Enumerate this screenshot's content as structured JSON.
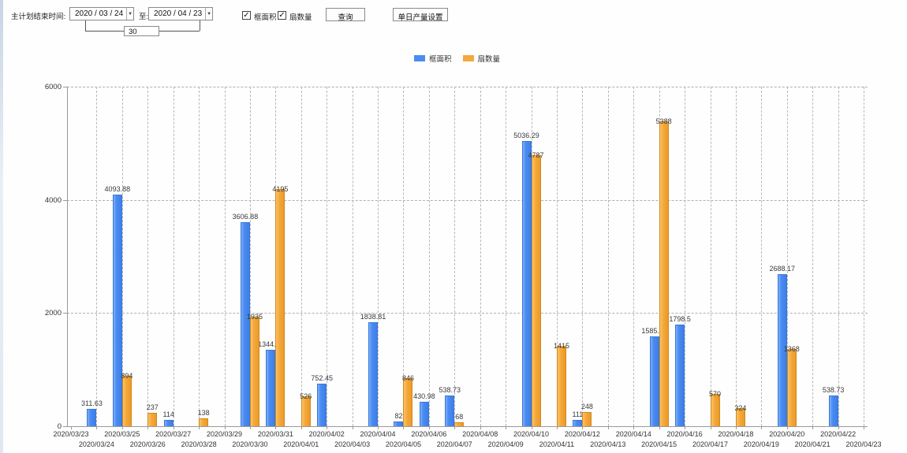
{
  "toolbar": {
    "range_label": "主计划结束时间:",
    "from_date": "2020 / 03 / 24",
    "to_label": "至:",
    "to_date": "2020 / 04 / 23",
    "span_days": "30",
    "checkbox_area_label": "框面积",
    "checkbox_area_checked": "✓",
    "checkbox_fan_label": "扇数量",
    "checkbox_fan_checked": "✓",
    "query_button_label": "查询",
    "daily_output_button_label": "单日产量设置"
  },
  "legend": {
    "items": [
      {
        "label": "框面积",
        "color": "#4a8cf2"
      },
      {
        "label": "扇数量",
        "color": "#f5a83c"
      }
    ]
  },
  "colors": {
    "blue_series": "#4a8cf2",
    "orange_series": "#f5a83c",
    "grid": "#b8b8b8",
    "axis": "#9a9a9a"
  },
  "chart_data": {
    "type": "bar",
    "title": "",
    "xlabel": "",
    "ylabel": "",
    "ylim": [
      0,
      6000
    ],
    "y_ticks": [
      0,
      2000,
      4000,
      6000
    ],
    "grid": true,
    "legend_position": "top-center",
    "categories": [
      "2020/03/23",
      "2020/03/24",
      "2020/03/25",
      "2020/03/26",
      "2020/03/27",
      "2020/03/28",
      "2020/03/29",
      "2020/03/30",
      "2020/03/31",
      "2020/04/01",
      "2020/04/02",
      "2020/04/03",
      "2020/04/04",
      "2020/04/05",
      "2020/04/06",
      "2020/04/07",
      "2020/04/08",
      "2020/04/09",
      "2020/04/10",
      "2020/04/11",
      "2020/04/12",
      "2020/04/13",
      "2020/04/14",
      "2020/04/15",
      "2020/04/16",
      "2020/04/17",
      "2020/04/18",
      "2020/04/19",
      "2020/04/20",
      "2020/04/21",
      "2020/04/22",
      "2020/04/23"
    ],
    "series": [
      {
        "name": "框面积",
        "color": "#4a8cf2",
        "values": [
          null,
          311.63,
          4093.88,
          null,
          114,
          null,
          null,
          3606.88,
          1344.95,
          null,
          752.45,
          null,
          1838.81,
          82,
          430.98,
          538.73,
          null,
          null,
          5036.29,
          null,
          111,
          null,
          null,
          1585.96,
          1798.5,
          null,
          null,
          null,
          2688.17,
          null,
          538.73,
          null
        ]
      },
      {
        "name": "扇数量",
        "color": "#f5a83c",
        "values": [
          null,
          null,
          894,
          237,
          null,
          138,
          null,
          1935,
          4195,
          526,
          null,
          null,
          null,
          846,
          null,
          68,
          null,
          null,
          4787,
          1415,
          248,
          null,
          null,
          5388,
          null,
          570,
          324,
          null,
          1368,
          null,
          null,
          null
        ]
      }
    ]
  }
}
